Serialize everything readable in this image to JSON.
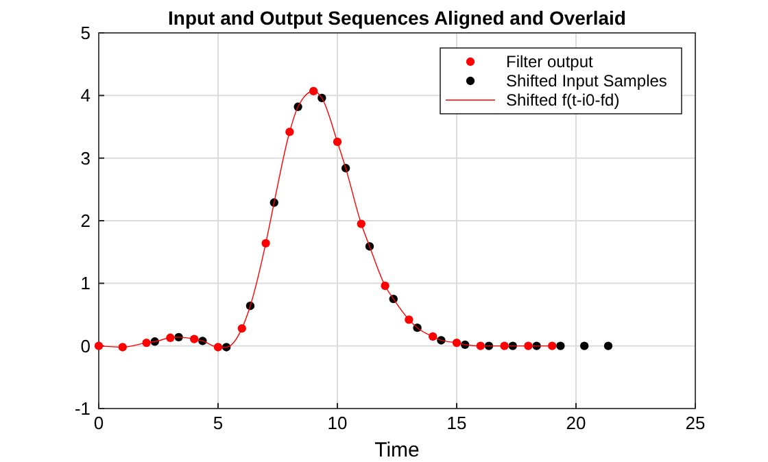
{
  "chart_data": {
    "type": "scatter",
    "title": "Input and Output Sequences Aligned and Overlaid",
    "xlabel": "Time",
    "xlim": [
      0,
      25
    ],
    "ylim": [
      -1,
      5
    ],
    "xticks": [
      0,
      5,
      10,
      15,
      20,
      25
    ],
    "yticks": [
      -1,
      0,
      1,
      2,
      3,
      4,
      5
    ],
    "grid": true,
    "legend": "top right",
    "marker": "circle",
    "series": [
      {
        "name": "Filter output",
        "color": "#ff0000",
        "x": [
          0,
          1,
          2,
          3,
          4,
          5,
          6,
          7,
          8,
          9,
          10,
          11,
          12,
          13,
          14,
          15,
          16,
          17,
          18,
          19
        ],
        "values": [
          0,
          -0.02,
          0.05,
          0.13,
          0.11,
          -0.02,
          0.28,
          1.64,
          3.42,
          4.07,
          3.26,
          1.95,
          0.96,
          0.42,
          0.15,
          0.05,
          0,
          0,
          0,
          0
        ]
      },
      {
        "name": "Shifted Input Samples",
        "color": "#000000",
        "x": [
          2.35,
          3.35,
          4.35,
          5.35,
          6.35,
          7.35,
          8.35,
          9.35,
          10.35,
          11.35,
          12.35,
          13.35,
          14.35,
          15.35,
          16.35,
          17.35,
          18.35,
          19.35,
          20.35,
          21.35
        ],
        "values": [
          0.07,
          0.14,
          0.08,
          -0.02,
          0.64,
          2.29,
          3.82,
          3.96,
          2.84,
          1.59,
          0.75,
          0.29,
          0.09,
          0.02,
          0,
          0,
          0,
          0,
          0,
          0
        ]
      },
      {
        "name": "Shifted f(t-i0-fd)",
        "type": "line",
        "marker": "none",
        "line_style": "solid",
        "color": "#ff0000",
        "x": [
          0,
          1,
          2,
          2.35,
          3,
          3.35,
          4,
          4.35,
          5,
          5.35,
          6,
          6.35,
          7,
          7.35,
          8,
          8.35,
          9,
          9.35,
          10,
          10.35,
          11,
          11.35,
          12,
          12.35,
          13,
          13.35,
          14,
          14.35,
          15,
          15.35,
          16,
          16.35,
          17,
          17.35,
          18,
          18.35,
          19
        ],
        "values": [
          0,
          -0.02,
          0.05,
          0.07,
          0.13,
          0.14,
          0.11,
          0.08,
          -0.02,
          -0.02,
          0.28,
          0.64,
          1.64,
          2.29,
          3.42,
          3.82,
          4.07,
          3.96,
          3.26,
          2.84,
          1.95,
          1.59,
          0.96,
          0.75,
          0.42,
          0.29,
          0.15,
          0.09,
          0.05,
          0.02,
          0,
          0,
          0,
          0,
          0,
          0,
          0
        ]
      }
    ]
  }
}
